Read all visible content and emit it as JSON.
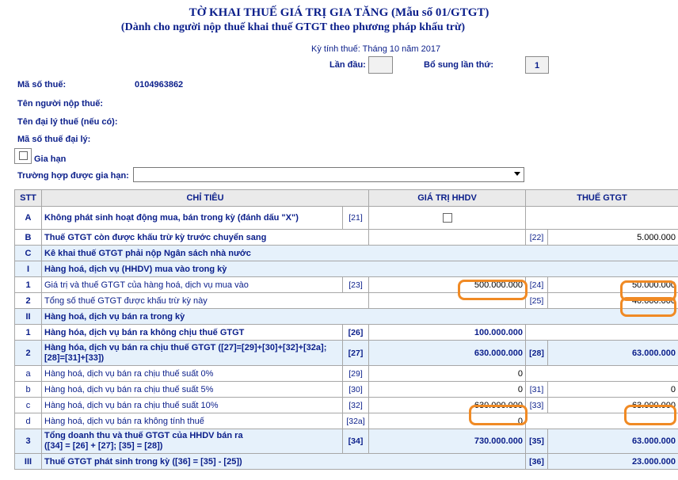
{
  "header": {
    "title": "TỜ KHAI THUẾ GIÁ TRỊ GIA TĂNG (Mẫu số 01/GTGT)",
    "subtitle": "(Dành cho người nộp thuế khai thuế GTGT theo phương pháp khấu trừ)",
    "period": "Kỳ tính thuế: Tháng 10 năm 2017",
    "first_time_label": "Lần đầu:",
    "first_time_value": "",
    "supplement_label": "Bổ sung lần thứ:",
    "supplement_value": "1"
  },
  "form": {
    "tax_code_label": "Mã số thuế:",
    "tax_code_value": "0104963862",
    "taxpayer_label": "Tên người nộp thuế:",
    "agent_label": "Tên đại lý thuế (nếu có):",
    "agent_code_label": "Mã số thuế đại lý:",
    "extension_label": "Gia hạn",
    "extension_case_label": "Trường hợp được gia hạn:",
    "extension_case_value": ""
  },
  "table": {
    "headers": {
      "stt": "STT",
      "indicator": "CHỈ TIÊU",
      "value": "GIÁ TRỊ HHDV",
      "tax": "THUẾ GTGT"
    },
    "rows": [
      {
        "stt": "A",
        "label": "Không phát sinh hoạt động mua, bán trong kỳ (đánh dấu \"X\")",
        "code": "[21]"
      },
      {
        "stt": "B",
        "label": "Thuế GTGT còn được khấu trừ kỳ trước chuyển sang",
        "tax_code": "[22]",
        "tax": "5.000.000"
      },
      {
        "stt": "C",
        "label": "Kê khai thuế GTGT phải nộp Ngân sách nhà nước"
      },
      {
        "stt": "I",
        "label": "Hàng hoá, dịch vụ (HHDV) mua vào trong kỳ"
      },
      {
        "stt": "1",
        "label": "Giá trị và thuế GTGT của hàng hoá, dịch vụ mua vào",
        "code": "[23]",
        "value": "500.000.000",
        "tax_code": "[24]",
        "tax": "50.000.000"
      },
      {
        "stt": "2",
        "label": "Tổng số thuế GTGT  được khấu trừ kỳ này",
        "tax_code": "[25]",
        "tax": "40.000.000"
      },
      {
        "stt": "II",
        "label": "Hàng hoá, dịch vụ bán ra trong kỳ"
      },
      {
        "stt": "1",
        "label": "Hàng hóa, dịch vụ bán ra không chịu thuế GTGT",
        "code": "[26]",
        "value": "100.000.000"
      },
      {
        "stt": "2",
        "label_line1": "Hàng hóa, dịch vụ bán ra chịu thuế GTGT ([27]=[29]+[30]+[32]+[32a];",
        "label_line2": "[28]=[31]+[33])",
        "code": "[27]",
        "value": "630.000.000",
        "tax_code": "[28]",
        "tax": "63.000.000"
      },
      {
        "stt": "a",
        "label": "Hàng hoá, dịch vụ bán ra chịu thuế suất 0%",
        "code": "[29]",
        "value": "0"
      },
      {
        "stt": "b",
        "label": "Hàng hoá, dịch vụ bán ra chịu thuế suất 5%",
        "code": "[30]",
        "value": "0",
        "tax_code": "[31]",
        "tax": "0"
      },
      {
        "stt": "c",
        "label": "Hàng hoá, dịch vụ bán ra chịu thuế suất 10%",
        "code": "[32]",
        "value": "630.000.000",
        "tax_code": "[33]",
        "tax": "63.000.000"
      },
      {
        "stt": "d",
        "label": "Hàng hoá, dịch vụ bán ra không tính thuế",
        "code": "[32a]",
        "value": "0"
      },
      {
        "stt": "3",
        "label_line1": "Tổng doanh thu và thuế GTGT của HHDV bán  ra",
        "label_line2": "([34] = [26] + [27]; [35] = [28])",
        "code": "[34]",
        "value": "730.000.000",
        "tax_code": "[35]",
        "tax": "63.000.000"
      },
      {
        "stt": "III",
        "label": "Thuế GTGT phát sinh trong kỳ ([36] = [35] - [25])",
        "tax_code": "[36]",
        "tax": "23.000.000"
      }
    ]
  },
  "highlight_color": "#f08a24"
}
